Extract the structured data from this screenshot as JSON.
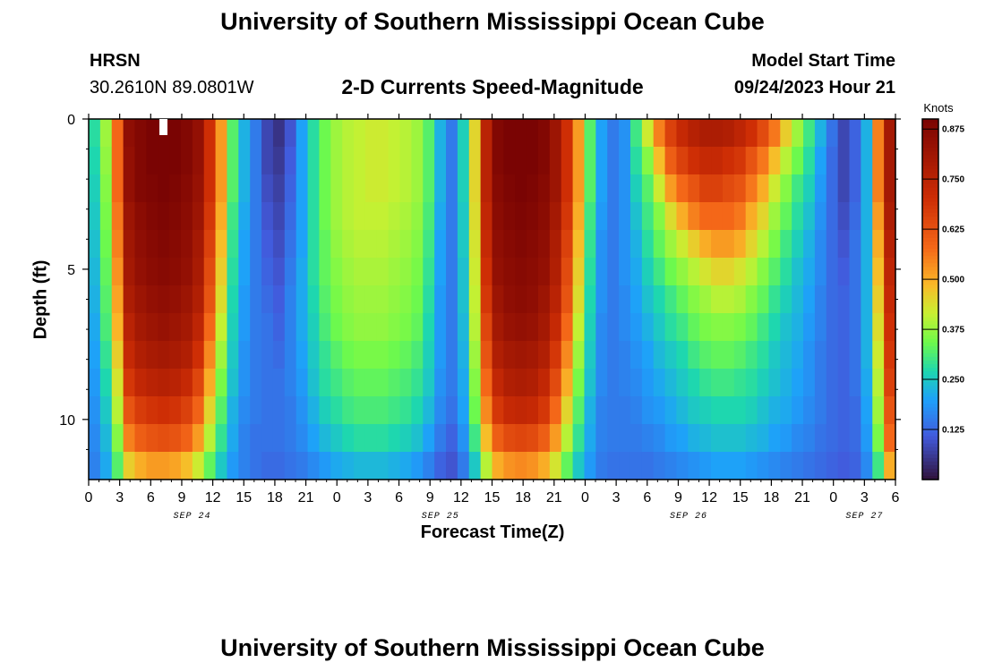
{
  "header": {
    "title": "University of Southern Mississippi Ocean Cube",
    "station": "HRSN",
    "location": "30.2610N  89.0801W",
    "subtitle": "2-D Currents Speed-Magnitude",
    "model_label": "Model Start Time",
    "model_time": "09/24/2023 Hour 21"
  },
  "footer": {
    "title": "University of Southern Mississippi Ocean Cube"
  },
  "chart_data": {
    "type": "heatmap",
    "title": "2-D Currents Speed-Magnitude",
    "xlabel": "Forecast Time(Z)",
    "ylabel": "Depth (ft)",
    "colorbar_label": "Knots",
    "x_hours_from_start": [
      0,
      78
    ],
    "x_ticks": [
      "0",
      "3",
      "6",
      "9",
      "12",
      "15",
      "18",
      "21",
      "0",
      "3",
      "6",
      "9",
      "12",
      "15",
      "18",
      "21",
      "0",
      "3",
      "6",
      "9",
      "12",
      "15",
      "18",
      "21",
      "0",
      "3",
      "6"
    ],
    "date_labels": [
      {
        "label": "SEP 24",
        "at_hour": 10
      },
      {
        "label": "SEP 25",
        "at_hour": 34
      },
      {
        "label": "SEP 26",
        "at_hour": 58
      },
      {
        "label": "SEP 27",
        "at_hour": 75
      }
    ],
    "y_range": [
      0,
      12
    ],
    "y_ticks": [
      "0",
      "5",
      "10"
    ],
    "colorbar_ticks": [
      "0.875",
      "0.750",
      "0.625",
      "0.500",
      "0.375",
      "0.250",
      "0.125"
    ],
    "colorbar_range": [
      0.0,
      0.9
    ],
    "depths": [
      0,
      1,
      2,
      3,
      4,
      5,
      6,
      7,
      8,
      9,
      10,
      11,
      12
    ],
    "rows": [
      [
        0.28,
        0.38,
        0.58,
        0.85,
        0.88,
        0.9,
        0.9,
        0.9,
        0.88,
        0.84,
        0.7,
        0.52,
        0.32,
        0.22,
        0.15,
        0.08,
        0.05,
        0.1,
        0.2,
        0.28,
        0.34,
        0.38,
        0.4,
        0.41,
        0.42,
        0.42,
        0.41,
        0.4,
        0.38,
        0.32,
        0.22,
        0.15,
        0.26,
        0.45,
        0.75,
        0.88,
        0.9,
        0.9,
        0.9,
        0.88,
        0.82,
        0.7,
        0.52,
        0.32,
        0.2,
        0.15,
        0.18,
        0.3,
        0.42,
        0.55,
        0.66,
        0.72,
        0.76,
        0.78,
        0.78,
        0.77,
        0.74,
        0.7,
        0.64,
        0.56,
        0.46,
        0.38,
        0.3,
        0.22,
        0.14,
        0.08,
        0.12,
        0.22,
        0.55,
        0.8
      ],
      [
        0.27,
        0.37,
        0.58,
        0.84,
        0.88,
        0.9,
        0.9,
        0.9,
        0.88,
        0.84,
        0.7,
        0.52,
        0.32,
        0.22,
        0.15,
        0.08,
        0.06,
        0.11,
        0.2,
        0.28,
        0.34,
        0.38,
        0.4,
        0.41,
        0.42,
        0.42,
        0.41,
        0.4,
        0.38,
        0.32,
        0.22,
        0.15,
        0.26,
        0.45,
        0.75,
        0.88,
        0.9,
        0.9,
        0.9,
        0.88,
        0.82,
        0.7,
        0.52,
        0.32,
        0.2,
        0.15,
        0.18,
        0.28,
        0.36,
        0.48,
        0.6,
        0.66,
        0.7,
        0.72,
        0.72,
        0.7,
        0.68,
        0.62,
        0.56,
        0.48,
        0.4,
        0.34,
        0.28,
        0.2,
        0.13,
        0.08,
        0.12,
        0.22,
        0.55,
        0.8
      ],
      [
        0.26,
        0.36,
        0.58,
        0.84,
        0.88,
        0.89,
        0.9,
        0.89,
        0.87,
        0.83,
        0.7,
        0.52,
        0.32,
        0.22,
        0.15,
        0.09,
        0.07,
        0.12,
        0.2,
        0.28,
        0.34,
        0.38,
        0.4,
        0.41,
        0.42,
        0.42,
        0.41,
        0.4,
        0.38,
        0.32,
        0.22,
        0.15,
        0.26,
        0.45,
        0.75,
        0.87,
        0.89,
        0.9,
        0.89,
        0.87,
        0.82,
        0.7,
        0.52,
        0.32,
        0.2,
        0.15,
        0.18,
        0.26,
        0.32,
        0.42,
        0.52,
        0.58,
        0.62,
        0.66,
        0.66,
        0.64,
        0.62,
        0.56,
        0.5,
        0.42,
        0.36,
        0.3,
        0.26,
        0.19,
        0.13,
        0.08,
        0.12,
        0.22,
        0.55,
        0.8
      ],
      [
        0.25,
        0.35,
        0.56,
        0.82,
        0.86,
        0.88,
        0.89,
        0.88,
        0.86,
        0.82,
        0.68,
        0.5,
        0.3,
        0.21,
        0.15,
        0.1,
        0.08,
        0.13,
        0.2,
        0.28,
        0.34,
        0.38,
        0.4,
        0.41,
        0.41,
        0.41,
        0.4,
        0.39,
        0.37,
        0.31,
        0.21,
        0.15,
        0.25,
        0.44,
        0.73,
        0.86,
        0.88,
        0.89,
        0.88,
        0.86,
        0.8,
        0.68,
        0.5,
        0.3,
        0.19,
        0.15,
        0.18,
        0.24,
        0.3,
        0.36,
        0.44,
        0.5,
        0.55,
        0.58,
        0.58,
        0.58,
        0.56,
        0.5,
        0.45,
        0.38,
        0.33,
        0.28,
        0.24,
        0.18,
        0.13,
        0.09,
        0.13,
        0.22,
        0.52,
        0.78
      ],
      [
        0.24,
        0.34,
        0.55,
        0.81,
        0.85,
        0.87,
        0.88,
        0.87,
        0.85,
        0.8,
        0.66,
        0.48,
        0.29,
        0.2,
        0.15,
        0.11,
        0.09,
        0.14,
        0.2,
        0.28,
        0.33,
        0.37,
        0.39,
        0.4,
        0.4,
        0.4,
        0.39,
        0.38,
        0.36,
        0.3,
        0.2,
        0.15,
        0.25,
        0.43,
        0.72,
        0.85,
        0.87,
        0.88,
        0.87,
        0.85,
        0.78,
        0.66,
        0.48,
        0.29,
        0.18,
        0.15,
        0.18,
        0.22,
        0.28,
        0.33,
        0.38,
        0.42,
        0.46,
        0.5,
        0.52,
        0.52,
        0.5,
        0.45,
        0.4,
        0.35,
        0.3,
        0.26,
        0.22,
        0.17,
        0.13,
        0.1,
        0.14,
        0.22,
        0.5,
        0.76
      ],
      [
        0.23,
        0.33,
        0.53,
        0.8,
        0.84,
        0.86,
        0.87,
        0.86,
        0.84,
        0.79,
        0.64,
        0.46,
        0.28,
        0.2,
        0.15,
        0.12,
        0.1,
        0.15,
        0.21,
        0.28,
        0.33,
        0.36,
        0.38,
        0.39,
        0.39,
        0.39,
        0.38,
        0.37,
        0.35,
        0.29,
        0.2,
        0.15,
        0.24,
        0.42,
        0.7,
        0.84,
        0.86,
        0.87,
        0.86,
        0.84,
        0.77,
        0.64,
        0.46,
        0.28,
        0.18,
        0.15,
        0.18,
        0.21,
        0.26,
        0.3,
        0.34,
        0.37,
        0.4,
        0.43,
        0.45,
        0.45,
        0.43,
        0.4,
        0.36,
        0.32,
        0.28,
        0.24,
        0.21,
        0.17,
        0.13,
        0.11,
        0.14,
        0.22,
        0.48,
        0.74
      ],
      [
        0.22,
        0.32,
        0.51,
        0.78,
        0.82,
        0.84,
        0.85,
        0.84,
        0.82,
        0.77,
        0.62,
        0.44,
        0.27,
        0.19,
        0.15,
        0.13,
        0.11,
        0.16,
        0.21,
        0.27,
        0.32,
        0.35,
        0.37,
        0.38,
        0.38,
        0.38,
        0.37,
        0.36,
        0.34,
        0.28,
        0.19,
        0.15,
        0.24,
        0.41,
        0.68,
        0.82,
        0.85,
        0.86,
        0.85,
        0.82,
        0.75,
        0.62,
        0.44,
        0.27,
        0.18,
        0.15,
        0.17,
        0.2,
        0.24,
        0.27,
        0.3,
        0.33,
        0.36,
        0.38,
        0.4,
        0.4,
        0.39,
        0.36,
        0.33,
        0.29,
        0.26,
        0.23,
        0.2,
        0.16,
        0.13,
        0.12,
        0.14,
        0.22,
        0.46,
        0.72
      ],
      [
        0.21,
        0.31,
        0.49,
        0.75,
        0.8,
        0.82,
        0.83,
        0.82,
        0.8,
        0.74,
        0.58,
        0.41,
        0.26,
        0.19,
        0.15,
        0.14,
        0.12,
        0.16,
        0.21,
        0.26,
        0.31,
        0.34,
        0.36,
        0.37,
        0.37,
        0.37,
        0.36,
        0.35,
        0.33,
        0.27,
        0.19,
        0.15,
        0.23,
        0.4,
        0.65,
        0.8,
        0.83,
        0.84,
        0.83,
        0.8,
        0.72,
        0.58,
        0.41,
        0.26,
        0.17,
        0.15,
        0.17,
        0.19,
        0.22,
        0.25,
        0.28,
        0.3,
        0.33,
        0.35,
        0.36,
        0.36,
        0.35,
        0.33,
        0.3,
        0.27,
        0.24,
        0.22,
        0.19,
        0.16,
        0.13,
        0.12,
        0.14,
        0.22,
        0.44,
        0.7
      ],
      [
        0.2,
        0.29,
        0.46,
        0.72,
        0.77,
        0.79,
        0.8,
        0.79,
        0.77,
        0.7,
        0.54,
        0.38,
        0.25,
        0.18,
        0.15,
        0.14,
        0.13,
        0.16,
        0.2,
        0.25,
        0.29,
        0.32,
        0.34,
        0.35,
        0.35,
        0.35,
        0.34,
        0.33,
        0.31,
        0.26,
        0.19,
        0.15,
        0.22,
        0.38,
        0.62,
        0.77,
        0.8,
        0.81,
        0.8,
        0.77,
        0.68,
        0.54,
        0.38,
        0.25,
        0.17,
        0.15,
        0.16,
        0.18,
        0.2,
        0.23,
        0.25,
        0.27,
        0.3,
        0.32,
        0.33,
        0.33,
        0.32,
        0.3,
        0.28,
        0.25,
        0.23,
        0.21,
        0.18,
        0.15,
        0.13,
        0.12,
        0.14,
        0.22,
        0.42,
        0.68
      ],
      [
        0.19,
        0.27,
        0.43,
        0.68,
        0.73,
        0.75,
        0.76,
        0.75,
        0.72,
        0.65,
        0.5,
        0.35,
        0.24,
        0.18,
        0.15,
        0.14,
        0.14,
        0.16,
        0.19,
        0.24,
        0.28,
        0.3,
        0.32,
        0.33,
        0.33,
        0.33,
        0.32,
        0.31,
        0.29,
        0.25,
        0.18,
        0.15,
        0.21,
        0.36,
        0.58,
        0.73,
        0.77,
        0.78,
        0.77,
        0.73,
        0.64,
        0.5,
        0.35,
        0.24,
        0.17,
        0.15,
        0.16,
        0.17,
        0.19,
        0.21,
        0.23,
        0.25,
        0.27,
        0.29,
        0.3,
        0.3,
        0.29,
        0.28,
        0.26,
        0.24,
        0.22,
        0.2,
        0.18,
        0.15,
        0.13,
        0.12,
        0.14,
        0.21,
        0.4,
        0.66
      ],
      [
        0.18,
        0.25,
        0.4,
        0.62,
        0.67,
        0.69,
        0.7,
        0.69,
        0.66,
        0.59,
        0.45,
        0.32,
        0.22,
        0.17,
        0.15,
        0.14,
        0.14,
        0.15,
        0.18,
        0.22,
        0.26,
        0.28,
        0.3,
        0.31,
        0.31,
        0.31,
        0.3,
        0.29,
        0.27,
        0.23,
        0.17,
        0.14,
        0.2,
        0.34,
        0.54,
        0.68,
        0.72,
        0.73,
        0.72,
        0.68,
        0.58,
        0.45,
        0.32,
        0.22,
        0.16,
        0.15,
        0.15,
        0.16,
        0.18,
        0.19,
        0.21,
        0.23,
        0.25,
        0.26,
        0.27,
        0.27,
        0.27,
        0.26,
        0.24,
        0.22,
        0.21,
        0.19,
        0.17,
        0.15,
        0.13,
        0.12,
        0.13,
        0.2,
        0.38,
        0.62
      ],
      [
        0.17,
        0.23,
        0.36,
        0.55,
        0.6,
        0.62,
        0.63,
        0.62,
        0.59,
        0.52,
        0.4,
        0.29,
        0.21,
        0.16,
        0.14,
        0.14,
        0.14,
        0.15,
        0.17,
        0.2,
        0.23,
        0.25,
        0.27,
        0.28,
        0.28,
        0.28,
        0.27,
        0.26,
        0.24,
        0.2,
        0.15,
        0.12,
        0.18,
        0.3,
        0.48,
        0.6,
        0.64,
        0.65,
        0.64,
        0.6,
        0.52,
        0.4,
        0.29,
        0.21,
        0.16,
        0.15,
        0.15,
        0.15,
        0.16,
        0.17,
        0.19,
        0.2,
        0.22,
        0.23,
        0.24,
        0.24,
        0.24,
        0.23,
        0.22,
        0.2,
        0.19,
        0.17,
        0.16,
        0.14,
        0.13,
        0.12,
        0.13,
        0.19,
        0.35,
        0.58
      ],
      [
        0.16,
        0.21,
        0.32,
        0.46,
        0.5,
        0.52,
        0.52,
        0.51,
        0.48,
        0.42,
        0.33,
        0.25,
        0.19,
        0.16,
        0.14,
        0.13,
        0.13,
        0.14,
        0.15,
        0.17,
        0.19,
        0.21,
        0.22,
        0.23,
        0.23,
        0.23,
        0.22,
        0.21,
        0.19,
        0.16,
        0.12,
        0.1,
        0.15,
        0.25,
        0.4,
        0.5,
        0.53,
        0.54,
        0.53,
        0.5,
        0.43,
        0.33,
        0.25,
        0.19,
        0.15,
        0.14,
        0.14,
        0.14,
        0.14,
        0.15,
        0.16,
        0.17,
        0.18,
        0.19,
        0.2,
        0.2,
        0.2,
        0.19,
        0.18,
        0.17,
        0.16,
        0.15,
        0.14,
        0.13,
        0.12,
        0.11,
        0.12,
        0.17,
        0.3,
        0.5
      ]
    ]
  }
}
